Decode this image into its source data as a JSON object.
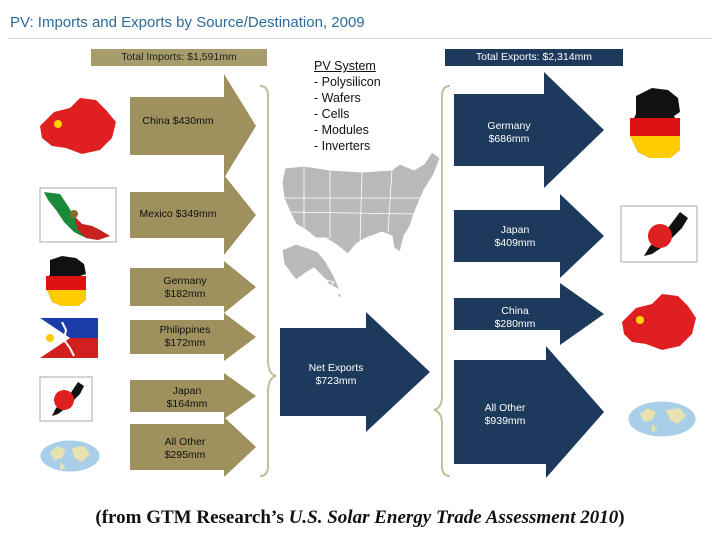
{
  "title": "PV: Imports and Exports by Source/Destination, 2009",
  "imports": {
    "header": "Total Imports: $1,591mm",
    "items": [
      {
        "line1": "China $430mm",
        "line2": "",
        "value": 430
      },
      {
        "line1": "Mexico $349mm",
        "line2": "",
        "value": 349
      },
      {
        "line1": "Germany",
        "line2": "$182mm",
        "value": 182
      },
      {
        "line1": "Philippines",
        "line2": "$172mm",
        "value": 172
      },
      {
        "line1": "Japan",
        "line2": "$164mm",
        "value": 164
      },
      {
        "line1": "All Other",
        "line2": "$295mm",
        "value": 295
      }
    ]
  },
  "pv_system": {
    "title": "PV System",
    "items": [
      "- Polysilicon",
      "- Wafers",
      "- Cells",
      "- Modules",
      "- Inverters"
    ]
  },
  "net_exports": {
    "line1": "Net Exports",
    "line2": "$723mm",
    "value": 723
  },
  "exports": {
    "header": "Total Exports: $2,314mm",
    "items": [
      {
        "line1": "Germany",
        "line2": "$686mm",
        "value": 686
      },
      {
        "line1": "Japan",
        "line2": "$409mm",
        "value": 409
      },
      {
        "line1": "China",
        "line2": "$280mm",
        "value": 280
      },
      {
        "line1": "All Other",
        "line2": "$939mm",
        "value": 939
      }
    ]
  },
  "caption": {
    "prefix": "(from GTM Research’s ",
    "italic": "U.S. Solar Energy Trade Assessment 2010",
    "suffix": ")"
  },
  "colors": {
    "import_arrow": "#9e915e",
    "export_arrow": "#1d3a5c",
    "title": "#2b6b9a",
    "map": "#b9b9b9",
    "bracket": "#c4bd99"
  }
}
